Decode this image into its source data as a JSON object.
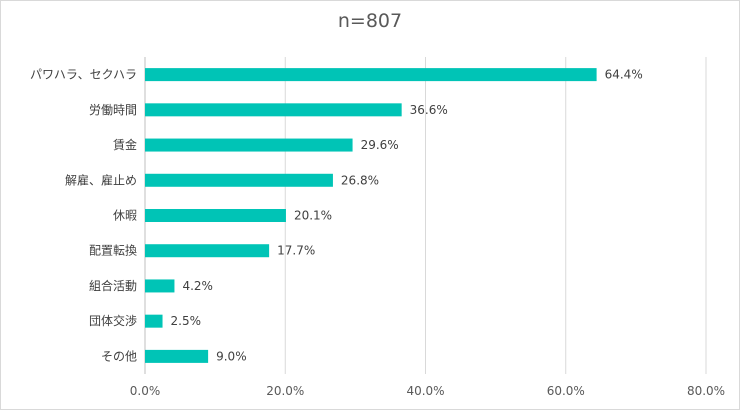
{
  "chart_data": {
    "type": "bar",
    "orientation": "horizontal",
    "title": "n=807",
    "categories": [
      "パワハラ、セクハラ",
      "労働時間",
      "賃金",
      "解雇、雇止め",
      "休暇",
      "配置転換",
      "組合活動",
      "団体交渉",
      "その他"
    ],
    "values": [
      64.4,
      36.6,
      29.6,
      26.8,
      20.1,
      17.7,
      4.2,
      2.5,
      9.0
    ],
    "value_labels": [
      "64.4%",
      "36.6%",
      "29.6%",
      "26.8%",
      "20.1%",
      "17.7%",
      "4.2%",
      "2.5%",
      "9.0%"
    ],
    "xlim": [
      0,
      80
    ],
    "x_ticks": [
      0,
      20,
      40,
      60,
      80
    ],
    "x_tick_labels": [
      "0.0%",
      "20.0%",
      "40.0%",
      "60.0%",
      "80.0%"
    ],
    "grid": "vertical",
    "bar_color": "#00c4b6",
    "xlabel": "",
    "ylabel": ""
  }
}
